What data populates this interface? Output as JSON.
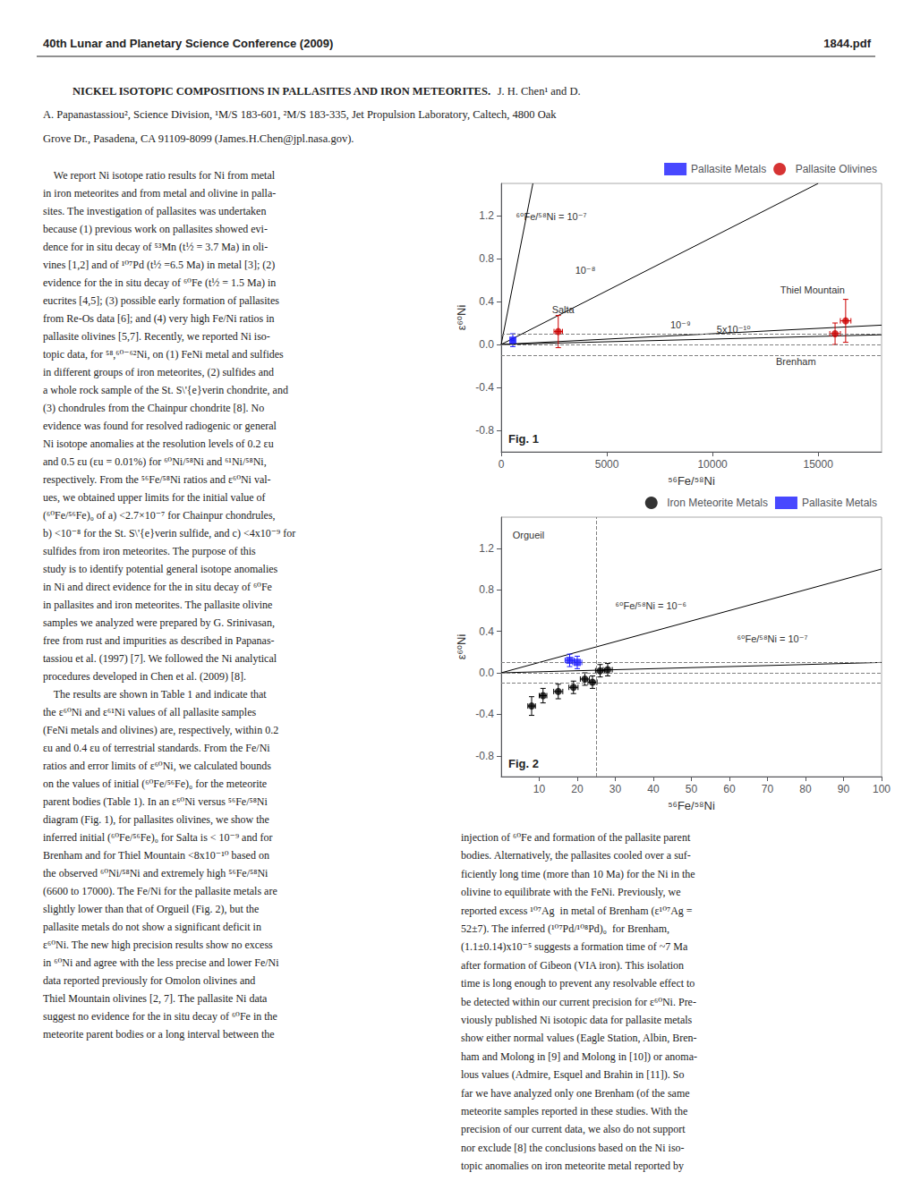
{
  "header": "40th Lunar and Planetary Science Conference (2009)",
  "header_right": "1844.pdf",
  "title": {
    "bold": "NICKEL ISOTOPIC COMPOSITIONS IN PALLASITES AND IRON METEORITES.",
    "lines": [
      "J. H. Chen¹ and D.",
      "A. Papanastassiou², Science Division, ¹M/S 183-601, ²M/S 183-335, Jet Propulsion Laboratory, Caltech, 4800 Oak",
      "Grove Dr., Pasadena, CA 91109-8099 (James.H.Chen@jpl.nasa.gov)."
    ]
  },
  "text_left": [
    "    We report Ni isotope ratio results for Ni from metal",
    "in iron meteorites and from metal and olivine in palla-",
    "sites. The investigation of pallasites was undertaken",
    "because (1) previous work on pallasites showed evi-",
    "dence for in situ decay of ⁵³Mn (t½ = 3.7 Ma) in oli-",
    "vines [1,2] and of ¹⁰⁷Pd (t½ =6.5 Ma) in metal [3]; (2)",
    "evidence for the in situ decay of ⁶⁰Fe (t½ = 1.5 Ma) in",
    "eucrites [4,5]; (3) possible early formation of pallasites",
    "from Re-Os data [6]; and (4) very high Fe/Ni ratios in",
    "pallasite olivines [5,7]. Recently, we reported Ni iso-",
    "topic data, for ⁵⁸,⁶⁰⁻⁶²Ni, on (1) FeNi metal and sulfides",
    "in different groups of iron meteorites, (2) sulfides and",
    "a whole rock sample of the St. S\\'{e}verin chondrite, and",
    "(3) chondrules from the Chainpur chondrite [8]. No",
    "evidence was found for resolved radiogenic or general",
    "Ni isotope anomalies at the resolution levels of 0.2 εu",
    "and 0.5 εu (εu = 0.01%) for ⁶⁰Ni/⁵⁸Ni and ⁶¹Ni/⁵⁸Ni,",
    "respectively. From the ⁵⁶Fe/⁵⁸Ni ratios and ε⁶⁰Ni val-",
    "ues, we obtained upper limits for the initial value of",
    "(⁶⁰Fe/⁵⁶Fe)₀ of a) <2.7×10⁻⁷ for Chainpur chondrules,",
    "b) <10⁻⁸ for the St. S\\'{e}verin sulfide, and c) <4x10⁻⁹ for",
    "sulfides from iron meteorites. The purpose of this",
    "study is to identify potential general isotope anomalies",
    "in Ni and direct evidence for the in situ decay of ⁶⁰Fe",
    "in pallasites and iron meteorites. The pallasite olivine",
    "samples we analyzed were prepared by G. Srinivasan,",
    "free from rust and impurities as described in Papanas-",
    "tassiou et al. (1997) [7]. We followed the Ni analytical",
    "procedures developed in Chen et al. (2009) [8].",
    "    The results are shown in Table 1 and indicate that",
    "the ε⁶⁰Ni and ε⁶¹Ni values of all pallasite samples",
    "(FeNi metals and olivines) are, respectively, within 0.2",
    "εu and 0.4 εu of terrestrial standards. From the Fe/Ni",
    "ratios and error limits of ε⁶⁰Ni, we calculated bounds",
    "on the values of initial (⁶⁰Fe/⁵⁶Fe)₀ for the meteorite",
    "parent bodies (Table 1). In an ε⁶⁰Ni versus ⁵⁶Fe/⁵⁸Ni",
    "diagram (Fig. 1), for pallasites olivines, we show the",
    "inferred initial (⁶⁰Fe/⁵⁶Fe)₀ for Salta is < 10⁻⁹ and for",
    "Brenham and for Thiel Mountain <8x10⁻¹⁰ based on",
    "the observed ⁶⁰Ni/⁵⁸Ni and extremely high ⁵⁶Fe/⁵⁸Ni",
    "(6600 to 17000). The Fe/Ni for the pallasite metals are",
    "slightly lower than that of Orgueil (Fig. 2), but the",
    "pallasite metals do not show a significant deficit in",
    "ε⁶⁰Ni. The new high precision results show no excess",
    "in ⁶⁰Ni and agree with the less precise and lower Fe/Ni",
    "data reported previously for Omolon olivines and",
    "Thiel Mountain olivines [2, 7]. The pallasite Ni data",
    "suggest no evidence for the in situ decay of ⁶⁰Fe in the",
    "meteorite parent bodies or a long interval between the"
  ],
  "text_right": [
    "injection of ⁶⁰Fe and formation of the pallasite parent",
    "bodies. Alternatively, the pallasites cooled over a suf-",
    "ficiently long time (more than 10 Ma) for the Ni in the",
    "olivine to equilibrate with the FeNi. Previously, we",
    "reported excess ¹⁰⁷Ag  in metal of Brenham (ε¹⁰⁷Ag =",
    "52±7). The inferred (¹⁰⁷Pd/¹⁰⁸Pd)₀  for Brenham,",
    "(1.1±0.14)x10⁻⁵ suggests a formation time of ~7 Ma",
    "after formation of Gibeon (VIA iron). This isolation",
    "time is long enough to prevent any resolvable effect to",
    "be detected within our current precision for ε⁶⁰Ni. Pre-",
    "viously published Ni isotopic data for pallasite metals",
    "show either normal values (Eagle Station, Albin, Bren-",
    "ham and Molong in [9] and Molong in [10]) or anoma-",
    "lous values (Admire, Esquel and Brahin in [11]). So",
    "far we have analyzed only one Brenham (of the same",
    "meteorite samples reported in these studies. With the",
    "precision of our current data, we also do not support",
    "nor exclude [8] the conclusions based on the Ni iso-",
    "topic anomalies on iron meteorite metal reported by"
  ],
  "chart_data": [
    {
      "type": "scatter",
      "title": "Fig. 1",
      "xlabel": "⁵⁶Fe/⁵⁸Ni",
      "ylabel": "ε⁶⁰Ni",
      "xlim": [
        0,
        18000
      ],
      "ylim": [
        -1.0,
        1.5
      ],
      "xticks": [
        0,
        5000,
        10000,
        15000
      ],
      "yticks": [
        -0.8,
        -0.4,
        {
          "value": 0,
          "label": "0.0"
        },
        0.4,
        0.8,
        1.2
      ],
      "grid": false,
      "legend": "upper right",
      "series": [
        {
          "name": "Pallasite Metals",
          "color": "#1a1aff",
          "marker": "square",
          "x": [
            550
          ],
          "y": [
            0.04
          ],
          "xerr": [
            80
          ],
          "yerr": [
            0.06
          ]
        },
        {
          "name": "Pallasite Olivines",
          "color": "#cc0000",
          "marker": "circle",
          "x": [
            2700,
            16300,
            15800
          ],
          "y": [
            0.12,
            0.22,
            0.1
          ],
          "xerr": [
            200,
            250,
            250
          ],
          "yerr": [
            0.15,
            0.2,
            0.1
          ]
        }
      ],
      "lines": [
        {
          "label": "⁶⁰Fe/⁵⁸Ni = 10⁻⁷",
          "label_at": [
            700,
            1.15
          ],
          "color": "#000000",
          "line_style": "solid",
          "points": [
            [
              0,
              0
            ],
            [
              1500,
              1.5
            ]
          ]
        },
        {
          "label": "10⁻⁸",
          "label_at": [
            3500,
            0.65
          ],
          "color": "#000000",
          "line_style": "solid",
          "points": [
            [
              0,
              0
            ],
            [
              15000,
              1.5
            ]
          ]
        },
        {
          "label": "10⁻⁹",
          "label_at": [
            8000,
            0.14
          ],
          "color": "#000000",
          "line_style": "solid",
          "points": [
            [
              0,
              0
            ],
            [
              18000,
              0.18
            ]
          ]
        },
        {
          "label": "5x10⁻¹⁰",
          "label_at": [
            10200,
            0.095
          ],
          "color": "#000000",
          "line_style": "solid",
          "points": [
            [
              0,
              0
            ],
            [
              18000,
              0.09
            ]
          ]
        }
      ],
      "hlines": {
        "values": [
          -0.1,
          0,
          0.1
        ],
        "color": "#808080",
        "line_style": "dashed"
      },
      "annotations": [
        {
          "text": "Salta",
          "x": 2400,
          "y": 0.28
        },
        {
          "text": "Thiel Mountain",
          "x": 13200,
          "y": 0.46
        },
        {
          "text": "Brenham",
          "x": 13000,
          "y": -0.2
        }
      ]
    },
    {
      "type": "scatter",
      "title": "Fig. 2",
      "xlabel": "⁵⁶Fe/⁵⁸Ni",
      "ylabel": "ε⁶⁰Ni",
      "xlim": [
        0,
        100
      ],
      "ylim": [
        -1.0,
        1.5
      ],
      "xticks": [
        10,
        20,
        30,
        40,
        50,
        60,
        70,
        80,
        90,
        100
      ],
      "yticks": [
        -0.8,
        -0.4,
        {
          "value": 0,
          "label": "0.0"
        },
        0.4,
        0.8,
        1.2
      ],
      "grid": false,
      "legend": "upper right",
      "series": [
        {
          "name": "Iron Meteorite Metals",
          "color": "#000000",
          "marker": "circle",
          "x": [
            8,
            11,
            15,
            19,
            22,
            24,
            26,
            28
          ],
          "y": [
            -0.32,
            -0.22,
            -0.18,
            -0.14,
            -0.06,
            -0.09,
            0.02,
            0.03
          ],
          "xerr": [
            1.0,
            1.0,
            1.2,
            1.2,
            1.2,
            1.2,
            1.2,
            1.2
          ],
          "yerr": [
            0.09,
            0.07,
            0.07,
            0.06,
            0.06,
            0.06,
            0.06,
            0.06
          ]
        },
        {
          "name": "Pallasite Metals",
          "color": "#1a1aff",
          "marker": "square",
          "x": [
            18,
            20
          ],
          "y": [
            0.12,
            0.1
          ],
          "xerr": [
            1.2,
            1.2
          ],
          "yerr": [
            0.06,
            0.06
          ]
        }
      ],
      "lines": [
        {
          "label": "⁶⁰Fe/⁵⁸Ni = 10⁻⁶",
          "label_at": [
            30,
            0.6
          ],
          "color": "#000000",
          "line_style": "solid",
          "points": [
            [
              0,
              0
            ],
            [
              100,
              1.0
            ]
          ]
        },
        {
          "label": "⁶⁰Fe/⁵⁸Ni = 10⁻⁷",
          "label_at": [
            62,
            0.28
          ],
          "color": "#000000",
          "line_style": "solid",
          "points": [
            [
              0,
              0
            ],
            [
              100,
              0.1
            ]
          ]
        }
      ],
      "hlines": {
        "values": [
          -0.1,
          0,
          0.1
        ],
        "color": "#808080",
        "line_style": "dashed"
      },
      "vlines": {
        "values": [
          25
        ],
        "color": "#808080",
        "line_style": "dashed"
      },
      "annotations": [
        {
          "text": "Orgueil",
          "x": 3,
          "y": 1.28
        }
      ]
    }
  ]
}
